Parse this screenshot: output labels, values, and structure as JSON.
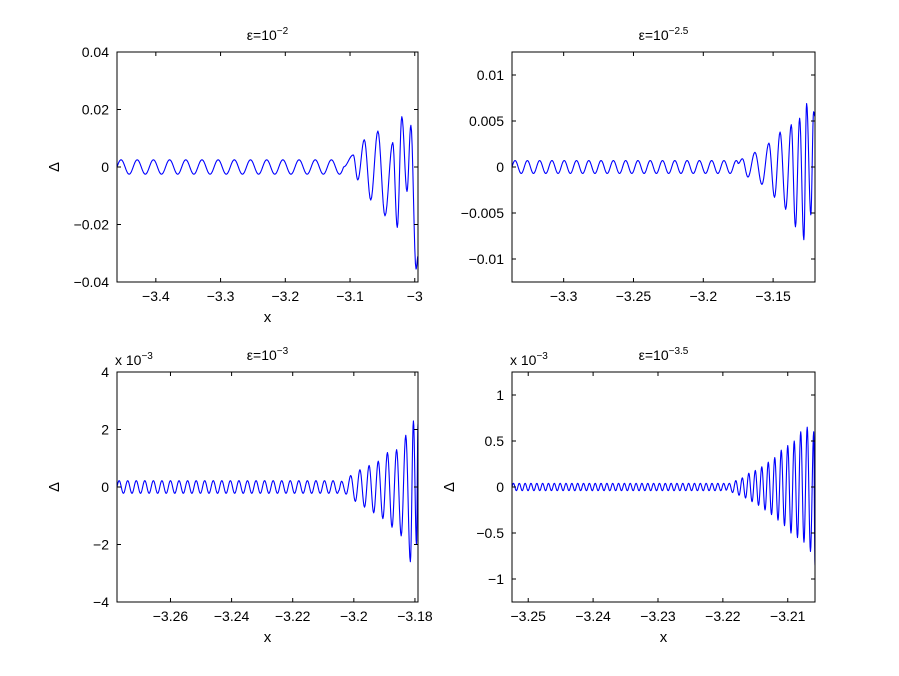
{
  "chart_data": [
    {
      "type": "line",
      "title_prefix": "ε=10",
      "title_exponent": "−2",
      "xlabel": "x",
      "ylabel": "Δ",
      "xlim": [
        -3.46,
        -2.995
      ],
      "ylim": [
        -0.04,
        0.04
      ],
      "xticks": [
        -3.4,
        -3.3,
        -3.2,
        -3.1,
        -3.0
      ],
      "xtick_labels": [
        "−3.4",
        "−3.3",
        "−3.2",
        "−3.1",
        "−3"
      ],
      "yticks": [
        -0.04,
        -0.02,
        0,
        0.02,
        0.04
      ],
      "ytick_labels": [
        "−0.04",
        "−0.02",
        "0",
        "0.02",
        "0.04"
      ],
      "y_multiplier": "",
      "grid": false,
      "series": [
        {
          "color": "#0000ff",
          "regular_zone": {
            "x_start": -3.46,
            "x_end": -3.11,
            "amplitude": 0.0025,
            "period": 0.025
          },
          "envelope_points": [
            {
              "x": -3.095,
              "y": 0.0042
            },
            {
              "x": -3.088,
              "y": -0.0045
            },
            {
              "x": -3.078,
              "y": 0.0095
            },
            {
              "x": -3.068,
              "y": -0.0115
            },
            {
              "x": -3.057,
              "y": 0.0125
            },
            {
              "x": -3.046,
              "y": -0.017
            },
            {
              "x": -3.034,
              "y": 0.0085
            },
            {
              "x": -3.027,
              "y": -0.021
            },
            {
              "x": -3.02,
              "y": 0.0175
            },
            {
              "x": -3.012,
              "y": -0.0085
            },
            {
              "x": -3.006,
              "y": 0.0145
            },
            {
              "x": -2.998,
              "y": -0.0355
            },
            {
              "x": -2.995,
              "y": -0.031
            }
          ]
        }
      ]
    },
    {
      "type": "line",
      "title_prefix": "ε=10",
      "title_exponent": "−2.5",
      "xlabel": "",
      "ylabel": "",
      "xlim": [
        -3.337,
        -3.12
      ],
      "ylim": [
        -0.0125,
        0.0125
      ],
      "xticks": [
        -3.3,
        -3.25,
        -3.2,
        -3.15
      ],
      "xtick_labels": [
        "−3.3",
        "−3.25",
        "−3.2",
        "−3.15"
      ],
      "yticks": [
        -0.01,
        -0.005,
        0,
        0.005,
        0.01
      ],
      "ytick_labels": [
        "−0.01",
        "−0.005",
        "0",
        "0.005",
        "0.01"
      ],
      "y_multiplier": "",
      "grid": false,
      "series": [
        {
          "color": "#0000ff",
          "regular_zone": {
            "x_start": -3.337,
            "x_end": -3.175,
            "amplitude": 0.0007,
            "period": 0.0088
          },
          "envelope_points": [
            {
              "x": -3.172,
              "y": 0.0009
            },
            {
              "x": -3.168,
              "y": -0.0011
            },
            {
              "x": -3.163,
              "y": 0.0016
            },
            {
              "x": -3.158,
              "y": -0.0019
            },
            {
              "x": -3.153,
              "y": 0.0026
            },
            {
              "x": -3.149,
              "y": -0.0033
            },
            {
              "x": -3.145,
              "y": 0.0038
            },
            {
              "x": -3.141,
              "y": -0.0046
            },
            {
              "x": -3.137,
              "y": 0.0046
            },
            {
              "x": -3.134,
              "y": -0.0065
            },
            {
              "x": -3.131,
              "y": 0.0053
            },
            {
              "x": -3.128,
              "y": -0.0079
            },
            {
              "x": -3.126,
              "y": 0.0069
            },
            {
              "x": -3.123,
              "y": -0.0052
            },
            {
              "x": -3.121,
              "y": 0.006
            },
            {
              "x": -3.12,
              "y": 0.0055
            }
          ]
        }
      ]
    },
    {
      "type": "line",
      "title_prefix": "ε=10",
      "title_exponent": "−3",
      "xlabel": "x",
      "ylabel": "Δ",
      "xlim": [
        -3.2775,
        -3.179
      ],
      "ylim": [
        -0.004,
        0.004
      ],
      "xticks": [
        -3.26,
        -3.24,
        -3.22,
        -3.2,
        -3.18
      ],
      "xtick_labels": [
        "−3.26",
        "−3.24",
        "−3.22",
        "−3.2",
        "−3.18"
      ],
      "yticks": [
        -0.004,
        -0.002,
        0,
        0.002,
        0.004
      ],
      "ytick_labels": [
        "−4",
        "−2",
        "0",
        "2",
        "4"
      ],
      "y_multiplier": "x 10",
      "y_multiplier_exponent": "−3",
      "grid": false,
      "series": [
        {
          "color": "#0000ff",
          "regular_zone": {
            "x_start": -3.2775,
            "x_end": -3.205,
            "amplitude": 0.00022,
            "period": 0.0028
          },
          "envelope_points": [
            {
              "x": -3.204,
              "y": 0.0002
            },
            {
              "x": -3.2025,
              "y": -0.00025
            },
            {
              "x": -3.201,
              "y": 0.0004
            },
            {
              "x": -3.1995,
              "y": -0.0005
            },
            {
              "x": -3.198,
              "y": 0.0006
            },
            {
              "x": -3.1965,
              "y": -0.0007
            },
            {
              "x": -3.195,
              "y": 0.00075
            },
            {
              "x": -3.1935,
              "y": -0.0009
            },
            {
              "x": -3.192,
              "y": 0.0009
            },
            {
              "x": -3.1905,
              "y": -0.0011
            },
            {
              "x": -3.189,
              "y": 0.0012
            },
            {
              "x": -3.1875,
              "y": -0.0014
            },
            {
              "x": -3.186,
              "y": 0.0013
            },
            {
              "x": -3.1845,
              "y": -0.0017
            },
            {
              "x": -3.183,
              "y": 0.0018
            },
            {
              "x": -3.1815,
              "y": -0.0026
            },
            {
              "x": -3.1805,
              "y": 0.0023
            },
            {
              "x": -3.1795,
              "y": -0.002
            },
            {
              "x": -3.179,
              "y": 0.0022
            }
          ]
        }
      ]
    },
    {
      "type": "line",
      "title_prefix": "ε=10",
      "title_exponent": "−3.5",
      "xlabel": "x",
      "ylabel": "Δ",
      "xlim": [
        -3.2525,
        -3.2058
      ],
      "ylim": [
        -0.00125,
        0.00125
      ],
      "xticks": [
        -3.25,
        -3.24,
        -3.23,
        -3.22,
        -3.21
      ],
      "xtick_labels": [
        "−3.25",
        "−3.24",
        "−3.23",
        "−3.22",
        "−3.21"
      ],
      "yticks": [
        -0.001,
        -0.0005,
        0,
        0.0005,
        0.001
      ],
      "ytick_labels": [
        "−1",
        "−0.5",
        "0",
        "0.5",
        "1"
      ],
      "y_multiplier": "x 10",
      "y_multiplier_exponent": "−3",
      "grid": false,
      "series": [
        {
          "color": "#0000ff",
          "regular_zone": {
            "x_start": -3.2525,
            "x_end": -3.2195,
            "amplitude": 4e-05,
            "period": 0.0009
          },
          "envelope_points": [
            {
              "x": -3.219,
              "y": 4e-05
            },
            {
              "x": -3.2185,
              "y": -6e-05
            },
            {
              "x": -3.218,
              "y": 7e-05
            },
            {
              "x": -3.2175,
              "y": -9e-05
            },
            {
              "x": -3.217,
              "y": 0.0001
            },
            {
              "x": -3.2165,
              "y": -0.00012
            },
            {
              "x": -3.216,
              "y": 0.00015
            },
            {
              "x": -3.2155,
              "y": -0.00016
            },
            {
              "x": -3.215,
              "y": 0.00018
            },
            {
              "x": -3.2145,
              "y": -0.0002
            },
            {
              "x": -3.214,
              "y": 0.00022
            },
            {
              "x": -3.2135,
              "y": -0.00025
            },
            {
              "x": -3.213,
              "y": 0.00027
            },
            {
              "x": -3.2125,
              "y": -0.0003
            },
            {
              "x": -3.212,
              "y": 0.00032
            },
            {
              "x": -3.2115,
              "y": -0.00036
            },
            {
              "x": -3.211,
              "y": 0.0004
            },
            {
              "x": -3.2105,
              "y": -0.00042
            },
            {
              "x": -3.21,
              "y": 0.00045
            },
            {
              "x": -3.2095,
              "y": -0.0005
            },
            {
              "x": -3.209,
              "y": 0.0005
            },
            {
              "x": -3.2085,
              "y": -0.00055
            },
            {
              "x": -3.208,
              "y": 0.0006
            },
            {
              "x": -3.2075,
              "y": -0.0006
            },
            {
              "x": -3.207,
              "y": 0.00065
            },
            {
              "x": -3.2065,
              "y": -0.0007
            },
            {
              "x": -3.206,
              "y": 0.0006
            },
            {
              "x": -3.2058,
              "y": -0.00085
            }
          ]
        }
      ]
    }
  ]
}
